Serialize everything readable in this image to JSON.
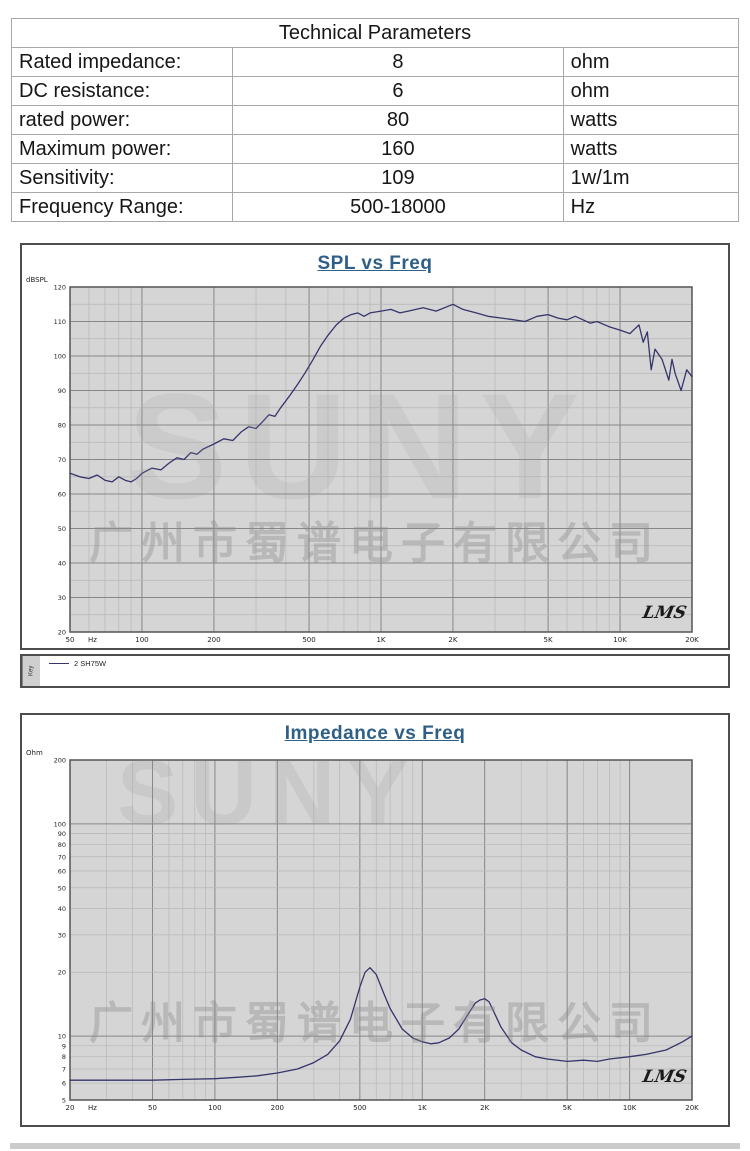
{
  "table": {
    "title": "Technical Parameters",
    "rows": [
      {
        "label": "Rated impedance:",
        "value": "8",
        "unit": "ohm"
      },
      {
        "label": "DC resistance:",
        "value": "6",
        "unit": "ohm"
      },
      {
        "label": "rated power:",
        "value": "80",
        "unit": "watts"
      },
      {
        "label": "Maximum power:",
        "value": "160",
        "unit": "watts"
      },
      {
        "label": "Sensitivity:",
        "value": "109",
        "unit": "1w/1m"
      },
      {
        "label": "Frequency Range:",
        "value": "500-18000",
        "unit": "Hz"
      }
    ]
  },
  "branding": {
    "logo": "LMS",
    "watermark_cn": "广州市蜀谱电子有限公司",
    "watermark_brand": "SUNY"
  },
  "legend_bar": {
    "key_label": "Key",
    "entry": "2  SH75W"
  },
  "colors": {
    "plot_bg": "#d5d5d5",
    "grid_minor": "#b7b7b7",
    "grid_major": "#878787",
    "frame": "#555555",
    "curve": "#35356b",
    "tick_text": "#222222",
    "title": "#2f5f86"
  },
  "chart_data": [
    {
      "type": "line",
      "title": "SPL vs Freq",
      "xlabel": "Hz",
      "ylabel": "dBSPL",
      "xscale": "log",
      "yscale": "linear",
      "xlim": [
        50,
        20000
      ],
      "ylim": [
        20,
        120
      ],
      "grid": true,
      "legend_position": "bottom-strip",
      "xticks": [
        50,
        100,
        200,
        500,
        1000,
        2000,
        5000,
        10000,
        20000
      ],
      "xtick_labels": [
        "50",
        "100",
        "200",
        "500",
        "1K",
        "2K",
        "5K",
        "10K",
        "20K"
      ],
      "yticks": [
        120,
        110,
        100,
        90,
        80,
        70,
        60,
        50,
        40,
        30,
        20
      ],
      "ygrid_step": 5,
      "ytick_step": 10,
      "series": [
        {
          "name": "2 SH75W",
          "x": [
            50,
            55,
            60,
            65,
            70,
            75,
            80,
            85,
            90,
            95,
            100,
            110,
            120,
            130,
            140,
            150,
            160,
            170,
            180,
            200,
            220,
            240,
            260,
            280,
            300,
            320,
            340,
            360,
            380,
            400,
            420,
            450,
            480,
            520,
            560,
            600,
            650,
            700,
            750,
            800,
            850,
            900,
            1000,
            1100,
            1200,
            1300,
            1500,
            1700,
            2000,
            2200,
            2500,
            2800,
            3200,
            3600,
            4000,
            4500,
            5000,
            5500,
            6000,
            6500,
            7000,
            7500,
            8000,
            9000,
            10000,
            11000,
            12000,
            12500,
            13000,
            13500,
            14000,
            15000,
            16000,
            16500,
            17000,
            18000,
            19000,
            20000
          ],
          "y": [
            66,
            65,
            64.5,
            65.5,
            64,
            63.5,
            65,
            64,
            63.5,
            64.5,
            66,
            67.5,
            67,
            69,
            70.5,
            70,
            72,
            71.5,
            73,
            74.5,
            76,
            75.5,
            78,
            79.5,
            79,
            81,
            83,
            82.5,
            85,
            87,
            89,
            92,
            95,
            99,
            103,
            106,
            109,
            111,
            112,
            112.5,
            111.5,
            112.5,
            113,
            113.5,
            112.5,
            113,
            114,
            113,
            115,
            113.5,
            112.5,
            111.5,
            111,
            110.5,
            110,
            111.5,
            112,
            111,
            110.5,
            111.5,
            110.5,
            109.5,
            110,
            108.5,
            107.5,
            106.5,
            109,
            104,
            107,
            96,
            102,
            99,
            93,
            99,
            95,
            90,
            96,
            94
          ]
        }
      ]
    },
    {
      "type": "line",
      "title": "Impedance vs Freq",
      "xlabel": "Hz",
      "ylabel": "Ohm",
      "xscale": "log",
      "yscale": "log",
      "xlim": [
        20,
        20000
      ],
      "ylim": [
        5,
        200
      ],
      "grid": true,
      "xticks": [
        20,
        50,
        100,
        200,
        500,
        1000,
        2000,
        5000,
        10000,
        20000
      ],
      "xtick_labels": [
        "20",
        "50",
        "100",
        "200",
        "500",
        "1K",
        "2K",
        "5K",
        "10K",
        "20K"
      ],
      "yticks": [
        200,
        100,
        90,
        80,
        70,
        60,
        50,
        40,
        30,
        20,
        10,
        9,
        8,
        7,
        6,
        5
      ],
      "series": [
        {
          "name": "2 SH75W",
          "x": [
            20,
            30,
            40,
            50,
            70,
            100,
            130,
            160,
            200,
            250,
            300,
            350,
            400,
            450,
            500,
            530,
            560,
            600,
            650,
            700,
            800,
            900,
            1000,
            1100,
            1200,
            1350,
            1500,
            1650,
            1800,
            1900,
            2000,
            2100,
            2200,
            2400,
            2700,
            3000,
            3500,
            4000,
            5000,
            6000,
            7000,
            8000,
            10000,
            12000,
            15000,
            18000,
            20000
          ],
          "y": [
            6.2,
            6.2,
            6.2,
            6.2,
            6.25,
            6.3,
            6.4,
            6.5,
            6.7,
            7.0,
            7.5,
            8.2,
            9.5,
            12,
            17,
            20,
            21,
            19.5,
            16,
            13.5,
            10.8,
            9.8,
            9.4,
            9.2,
            9.3,
            9.8,
            10.8,
            12.5,
            14.3,
            14.8,
            15,
            14.5,
            13.2,
            11,
            9.3,
            8.6,
            8.0,
            7.8,
            7.6,
            7.7,
            7.6,
            7.8,
            8.0,
            8.2,
            8.6,
            9.4,
            10
          ]
        }
      ]
    }
  ]
}
